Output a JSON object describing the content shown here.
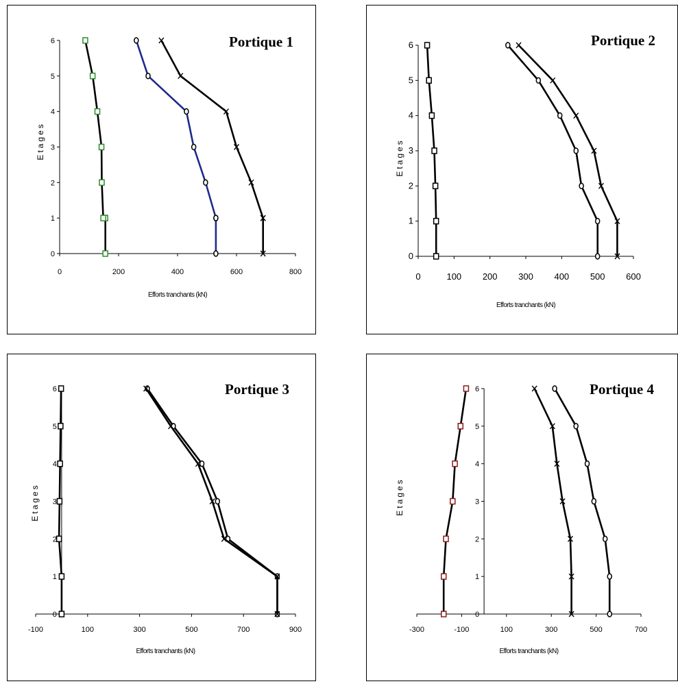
{
  "chart_data": [
    {
      "type": "line",
      "title": "Portique 1",
      "xlabel": "Efforts tranchants (kN)",
      "ylabel": "Etages",
      "xlim": [
        0,
        800
      ],
      "ylim": [
        0,
        6
      ],
      "xticks": [
        0,
        200,
        400,
        600,
        800
      ],
      "yticks": [
        0,
        1,
        2,
        3,
        4,
        5,
        6
      ],
      "series": [
        {
          "marker": "square",
          "color": "#000000",
          "marker_color": "#2e8b2e",
          "x": [
            155,
            155,
            148,
            143,
            142,
            128,
            112,
            87
          ],
          "y": [
            0,
            1,
            1,
            2,
            3,
            4,
            5,
            6
          ]
        },
        {
          "marker": "circle",
          "color": "#1c2a8c",
          "marker_color": "#000000",
          "x": [
            530,
            530,
            530,
            495,
            455,
            430,
            300,
            260
          ],
          "y": [
            0,
            1,
            1,
            2,
            3,
            4,
            5,
            6
          ]
        },
        {
          "marker": "x",
          "color": "#000000",
          "marker_color": "#000000",
          "x": [
            690,
            690,
            690,
            650,
            600,
            565,
            410,
            345
          ],
          "y": [
            0,
            1,
            1,
            2,
            3,
            4,
            5,
            6
          ]
        }
      ]
    },
    {
      "type": "line",
      "title": "Portique 2",
      "xlabel": "Efforts tranchants (kN)",
      "ylabel": "Etages",
      "xlim": [
        0,
        600
      ],
      "ylim": [
        0,
        6
      ],
      "xticks": [
        0,
        100,
        200,
        300,
        400,
        500,
        600
      ],
      "yticks": [
        0,
        1,
        2,
        3,
        4,
        5,
        6
      ],
      "series": [
        {
          "marker": "square",
          "color": "#000000",
          "marker_color": "#000000",
          "x": [
            50,
            50,
            48,
            45,
            38,
            30,
            25
          ],
          "y": [
            0,
            1,
            2,
            3,
            4,
            5,
            6
          ]
        },
        {
          "marker": "circle",
          "color": "#000000",
          "marker_color": "#000000",
          "x": [
            500,
            500,
            455,
            440,
            395,
            335,
            250
          ],
          "y": [
            0,
            1,
            2,
            3,
            4,
            5,
            6
          ]
        },
        {
          "marker": "x",
          "color": "#000000",
          "marker_color": "#000000",
          "x": [
            555,
            555,
            510,
            490,
            440,
            375,
            280
          ],
          "y": [
            0,
            1,
            2,
            3,
            4,
            5,
            6
          ]
        }
      ]
    },
    {
      "type": "line",
      "title": "Portique 3",
      "xlabel": "Efforts tranchants (kN)",
      "ylabel": "Etages",
      "xlim": [
        -100,
        900
      ],
      "ylim": [
        0,
        6
      ],
      "xticks": [
        -100,
        100,
        300,
        500,
        700,
        900
      ],
      "yticks": [
        0,
        1,
        2,
        3,
        4,
        5,
        6
      ],
      "series": [
        {
          "marker": "square",
          "color": "#000000",
          "marker_color": "#000000",
          "x": [
            0,
            0,
            -10,
            -8,
            -6,
            -4,
            -2
          ],
          "y": [
            0,
            1,
            2,
            3,
            4,
            5,
            6
          ]
        },
        {
          "marker": "circle",
          "color": "#000000",
          "marker_color": "#000000",
          "x": [
            830,
            830,
            640,
            600,
            540,
            430,
            330
          ],
          "y": [
            0,
            1,
            2,
            3,
            4,
            5,
            6
          ]
        },
        {
          "marker": "x",
          "color": "#000000",
          "marker_color": "#000000",
          "x": [
            830,
            830,
            625,
            580,
            525,
            420,
            325
          ],
          "y": [
            0,
            1,
            2,
            3,
            4,
            5,
            6
          ]
        }
      ]
    },
    {
      "type": "line",
      "title": "Portique 4",
      "xlabel": "Efforts tranchants (kN)",
      "ylabel": "Etages",
      "xlim": [
        -300,
        700
      ],
      "ylim": [
        0,
        6
      ],
      "xticks": [
        -300,
        -100,
        100,
        300,
        500,
        700
      ],
      "yticks": [
        0,
        1,
        2,
        3,
        4,
        5,
        6
      ],
      "series": [
        {
          "marker": "square",
          "color": "#000000",
          "marker_color": "#8b1a1a",
          "x": [
            -180,
            -180,
            -170,
            -140,
            -130,
            -105,
            -80
          ],
          "y": [
            0,
            1,
            2,
            3,
            4,
            5,
            6
          ]
        },
        {
          "marker": "circle",
          "color": "#000000",
          "marker_color": "#000000",
          "x": [
            560,
            560,
            540,
            490,
            460,
            410,
            315
          ],
          "y": [
            0,
            1,
            2,
            3,
            4,
            5,
            6
          ]
        },
        {
          "marker": "x",
          "color": "#000000",
          "marker_color": "#000000",
          "x": [
            390,
            390,
            385,
            350,
            325,
            305,
            225
          ],
          "y": [
            0,
            1,
            2,
            3,
            4,
            5,
            6
          ]
        }
      ]
    }
  ]
}
